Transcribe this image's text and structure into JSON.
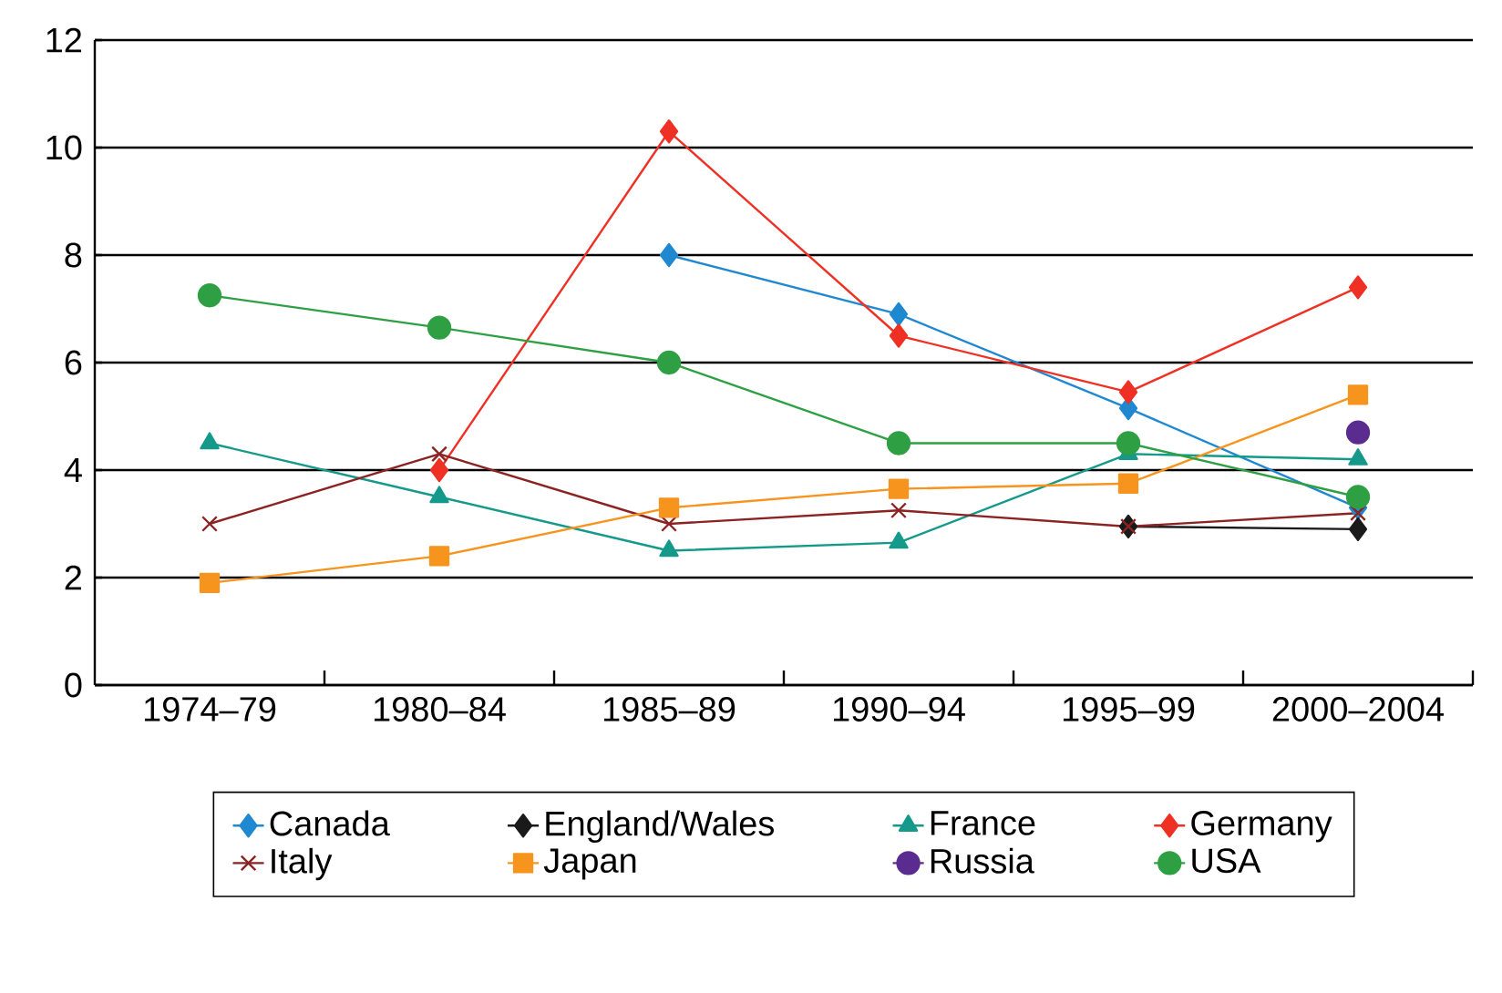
{
  "chart_data": {
    "type": "line",
    "categories": [
      "1974–79",
      "1980–84",
      "1985–89",
      "1990–94",
      "1995–99",
      "2000–2004"
    ],
    "ylim": [
      0,
      12
    ],
    "yticks": [
      0,
      2,
      4,
      6,
      8,
      10,
      12
    ],
    "grid": "y",
    "legend": "bottom",
    "line_style": "solid",
    "series": [
      {
        "name": "Canada",
        "color": "#1f88d0",
        "marker": "diamond",
        "values": [
          null,
          null,
          8.0,
          6.9,
          5.15,
          3.3
        ]
      },
      {
        "name": "England/Wales",
        "color": "#1a1a1a",
        "marker": "diamond",
        "values": [
          null,
          null,
          null,
          null,
          2.95,
          2.9
        ]
      },
      {
        "name": "France",
        "color": "#14998a",
        "marker": "triangle",
        "values": [
          4.5,
          3.5,
          2.5,
          2.65,
          4.3,
          4.2
        ]
      },
      {
        "name": "Germany",
        "color": "#ee3124",
        "marker": "diamond",
        "values": [
          null,
          4.0,
          10.3,
          6.5,
          5.45,
          7.4
        ]
      },
      {
        "name": "Italy",
        "color": "#8b2323",
        "marker": "cross",
        "values": [
          3.0,
          4.3,
          3.0,
          3.25,
          2.95,
          3.2
        ]
      },
      {
        "name": "Japan",
        "color": "#f7941d",
        "marker": "square",
        "values": [
          1.9,
          2.4,
          3.3,
          3.65,
          3.75,
          5.4
        ]
      },
      {
        "name": "Russia",
        "color": "#5b2c8f",
        "marker": "circle",
        "values": [
          null,
          null,
          null,
          null,
          null,
          4.7
        ]
      },
      {
        "name": "USA",
        "color": "#2ea043",
        "marker": "circle",
        "values": [
          7.25,
          6.65,
          6.0,
          4.5,
          4.5,
          3.5
        ]
      }
    ]
  }
}
